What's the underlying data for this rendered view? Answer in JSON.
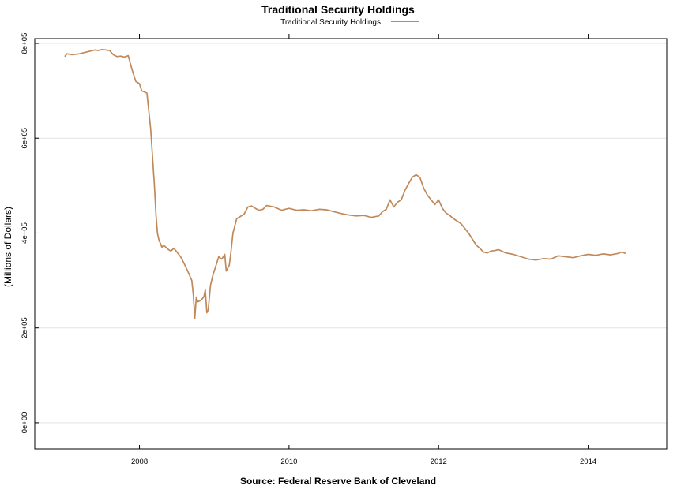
{
  "chart_data": {
    "type": "line",
    "title": "Traditional Security Holdings",
    "xlabel": "",
    "ylabel": "(Millions of Dollars)",
    "source": "Source: Federal Reserve Bank of Cleveland",
    "xlim": [
      2006.6,
      2015.05
    ],
    "ylim": [
      -55000,
      810000
    ],
    "x_ticks": [
      2008,
      2010,
      2012,
      2014
    ],
    "x_tick_labels": [
      "2008",
      "2010",
      "2012",
      "2014"
    ],
    "top_ticks": [
      2008,
      2010,
      2012,
      2014
    ],
    "y_ticks": [
      0,
      200000,
      400000,
      600000,
      800000
    ],
    "y_tick_labels": [
      "0e+00",
      "2e+05",
      "4e+05",
      "6e+05",
      "8e+05"
    ],
    "grid": true,
    "legend": {
      "position": "top-center",
      "entries": [
        "Traditional Security Holdings"
      ]
    },
    "series": [
      {
        "name": "Traditional Security Holdings",
        "color": "#c0895a",
        "x": [
          2007.0,
          2007.03,
          2007.1,
          2007.2,
          2007.3,
          2007.4,
          2007.45,
          2007.5,
          2007.6,
          2007.65,
          2007.7,
          2007.75,
          2007.8,
          2007.85,
          2007.9,
          2007.95,
          2008.0,
          2008.03,
          2008.06,
          2008.1,
          2008.15,
          2008.2,
          2008.22,
          2008.24,
          2008.26,
          2008.28,
          2008.3,
          2008.32,
          2008.34,
          2008.38,
          2008.42,
          2008.46,
          2008.5,
          2008.55,
          2008.6,
          2008.65,
          2008.7,
          2008.72,
          2008.74,
          2008.76,
          2008.78,
          2008.82,
          2008.86,
          2008.88,
          2008.9,
          2008.92,
          2008.95,
          2008.98,
          2009.02,
          2009.06,
          2009.1,
          2009.14,
          2009.16,
          2009.2,
          2009.22,
          2009.25,
          2009.3,
          2009.35,
          2009.4,
          2009.45,
          2009.5,
          2009.55,
          2009.6,
          2009.65,
          2009.7,
          2009.8,
          2009.9,
          2010.0,
          2010.1,
          2010.2,
          2010.3,
          2010.4,
          2010.5,
          2010.6,
          2010.7,
          2010.8,
          2010.9,
          2011.0,
          2011.1,
          2011.2,
          2011.25,
          2011.3,
          2011.35,
          2011.4,
          2011.45,
          2011.5,
          2011.55,
          2011.6,
          2011.65,
          2011.7,
          2011.75,
          2011.8,
          2011.85,
          2011.9,
          2011.95,
          2012.0,
          2012.05,
          2012.1,
          2012.15,
          2012.2,
          2012.3,
          2012.4,
          2012.5,
          2012.55,
          2012.6,
          2012.65,
          2012.7,
          2012.75,
          2012.8,
          2012.9,
          2013.0,
          2013.1,
          2013.2,
          2013.3,
          2013.4,
          2013.5,
          2013.6,
          2013.7,
          2013.8,
          2013.9,
          2014.0,
          2014.1,
          2014.2,
          2014.3,
          2014.4,
          2014.45,
          2014.5
        ],
        "values": [
          772000,
          778000,
          776000,
          778000,
          782000,
          786000,
          785000,
          787000,
          785000,
          776000,
          772000,
          773000,
          771000,
          774000,
          745000,
          720000,
          715000,
          700000,
          698000,
          695000,
          620000,
          500000,
          440000,
          400000,
          385000,
          378000,
          370000,
          374000,
          372000,
          366000,
          362000,
          368000,
          360000,
          350000,
          335000,
          318000,
          300000,
          270000,
          220000,
          265000,
          255000,
          258000,
          265000,
          280000,
          232000,
          238000,
          290000,
          310000,
          330000,
          350000,
          345000,
          355000,
          320000,
          332000,
          355000,
          400000,
          430000,
          435000,
          440000,
          455000,
          457000,
          452000,
          448000,
          450000,
          458000,
          455000,
          448000,
          452000,
          448000,
          449000,
          447000,
          450000,
          449000,
          445000,
          441000,
          438000,
          436000,
          437000,
          433000,
          436000,
          445000,
          450000,
          470000,
          455000,
          465000,
          470000,
          490000,
          505000,
          518000,
          523000,
          517000,
          495000,
          480000,
          470000,
          460000,
          470000,
          452000,
          442000,
          437000,
          430000,
          420000,
          400000,
          375000,
          368000,
          360000,
          358000,
          362000,
          363000,
          365000,
          358000,
          355000,
          350000,
          345000,
          343000,
          346000,
          345000,
          352000,
          350000,
          348000,
          352000,
          355000,
          353000,
          356000,
          354000,
          357000,
          360000,
          357000
        ]
      }
    ]
  }
}
